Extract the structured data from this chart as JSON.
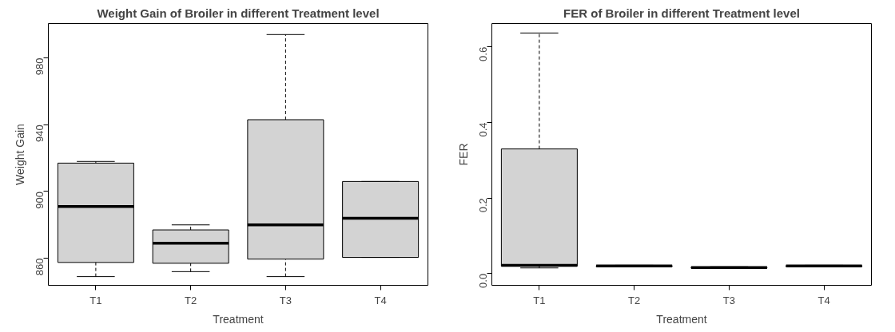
{
  "chart_data": [
    {
      "type": "box",
      "title": "Weight Gain of Broiler in different Treatment level",
      "xlabel": "Treatment",
      "ylabel": "Weight Gain",
      "categories": [
        "T1",
        "T2",
        "T3",
        "T4"
      ],
      "boxes": [
        {
          "low": 849,
          "q1": 857.5,
          "median": 891,
          "q3": 917,
          "high": 918
        },
        {
          "low": 852,
          "q1": 857,
          "median": 869,
          "q3": 877,
          "high": 880
        },
        {
          "low": 849,
          "q1": 859.5,
          "median": 880,
          "q3": 943,
          "high": 994
        },
        {
          "low": 860.5,
          "q1": 860.5,
          "median": 884,
          "q3": 906,
          "high": 906
        }
      ],
      "ylim": [
        843.8,
        1000.6
      ],
      "yticks": [
        860,
        900,
        940,
        980
      ],
      "grid": false,
      "color": "#d3d3d3"
    },
    {
      "type": "box",
      "title": "FER of Broiler in different Treatment level",
      "xlabel": "Treatment",
      "ylabel": "FER",
      "categories": [
        "T1",
        "T2",
        "T3",
        "T4"
      ],
      "boxes": [
        {
          "low": 0.015,
          "q1": 0.02,
          "median": 0.022,
          "q3": 0.33,
          "high": 0.637
        },
        {
          "low": 0.018,
          "q1": 0.019,
          "median": 0.02,
          "q3": 0.021,
          "high": 0.022
        },
        {
          "low": 0.014,
          "q1": 0.015,
          "median": 0.016,
          "q3": 0.017,
          "high": 0.018
        },
        {
          "low": 0.018,
          "q1": 0.019,
          "median": 0.02,
          "q3": 0.021,
          "high": 0.022
        }
      ],
      "ylim": [
        -0.031,
        0.662
      ],
      "yticks": [
        {
          "value": 0.0,
          "label": "0.0"
        },
        {
          "value": 0.2,
          "label": "0.2"
        },
        {
          "value": 0.4,
          "label": "0.4"
        },
        {
          "value": 0.6,
          "label": "0.6"
        }
      ],
      "grid": false,
      "color": "#d3d3d3"
    }
  ]
}
